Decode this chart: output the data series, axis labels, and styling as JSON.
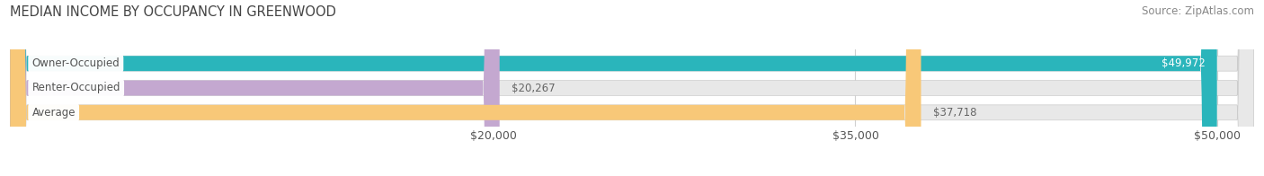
{
  "title": "MEDIAN INCOME BY OCCUPANCY IN GREENWOOD",
  "source": "Source: ZipAtlas.com",
  "categories": [
    "Owner-Occupied",
    "Renter-Occupied",
    "Average"
  ],
  "values": [
    49972,
    20267,
    37718
  ],
  "bar_colors": [
    "#2ab5bb",
    "#c4a8d0",
    "#f8c878"
  ],
  "bar_bg_color": "#e8e8e8",
  "labels": [
    "$49,972",
    "$20,267",
    "$37,718"
  ],
  "x_ticks": [
    20000,
    35000,
    50000
  ],
  "x_tick_labels": [
    "$20,000",
    "$35,000",
    "$50,000"
  ],
  "xlim_max": 51500,
  "title_fontsize": 10.5,
  "source_fontsize": 8.5,
  "tick_fontsize": 9,
  "label_fontsize": 8.5,
  "bar_height": 0.62,
  "background_color": "#ffffff",
  "grid_color": "#d0d0d0",
  "text_color": "#555555",
  "white_label_color": "#ffffff",
  "value_inside_color": "#ffffff",
  "value_outside_color": "#666666"
}
